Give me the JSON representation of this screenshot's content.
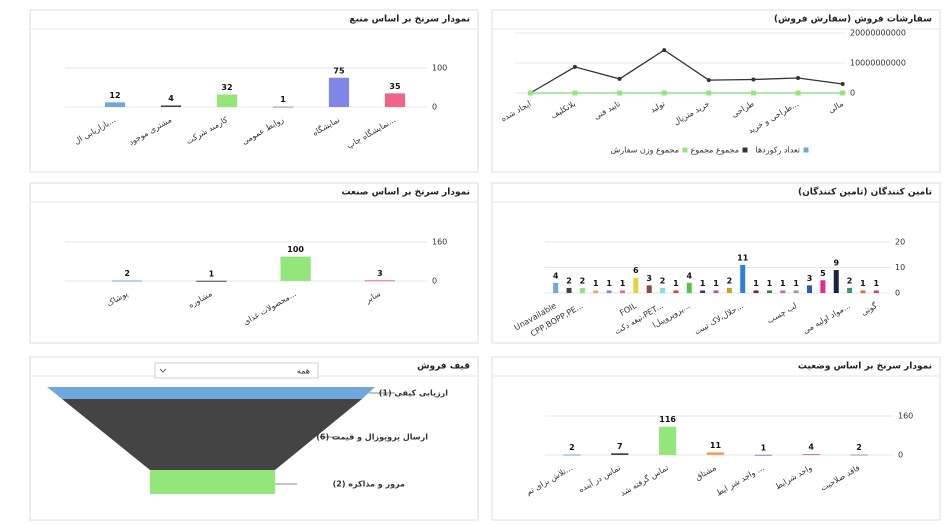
{
  "chart_data": [
    {
      "type": "bar",
      "title": "نمودار سرنخ بر اساس منبع",
      "categories": [
        "بازاریابی ال...",
        "مشتری موجود",
        "کارمند شرکت",
        "روابط عمومی",
        "نمایشگاه",
        "نمایشگاه چاپ..."
      ],
      "values": [
        12,
        4,
        32,
        1,
        75,
        35
      ],
      "colors": [
        "#6fa8dc",
        "#444444",
        "#93e67a",
        "#999999",
        "#7f86e8",
        "#f0648a"
      ],
      "ylim": [
        0,
        100
      ],
      "yticks": [
        0,
        100
      ],
      "grid": true
    },
    {
      "type": "line",
      "title": "سفارشات فروش (سفارش فروش)",
      "categories": [
        "ایجاد شده",
        "بلاتکلیف",
        "تایید فنی",
        "تولید",
        "خرید متریال",
        "طراحی",
        "طراحی و خرید...",
        "مالی"
      ],
      "series": [
        {
          "name": "تعداد رکوردها",
          "color": "#6fa8dc",
          "values": [
            0,
            0,
            0,
            0,
            0,
            0,
            0,
            0
          ]
        },
        {
          "name": "مجموع مجموع",
          "color": "#333333",
          "values": [
            0,
            8700000000,
            4700000000,
            14300000000,
            4300000000,
            4500000000,
            5000000000,
            3000000000
          ]
        },
        {
          "name": "مجموع وزن سفارش",
          "color": "#93e67a",
          "values": [
            0,
            0,
            0,
            0,
            0,
            0,
            0,
            0
          ]
        }
      ],
      "ylim": [
        0,
        20000000000
      ],
      "yticks": [
        0,
        10000000000,
        20000000000
      ],
      "grid": true,
      "legend": "bottom"
    },
    {
      "type": "bar",
      "title": "نمودار سرنخ بر اساس صنعت",
      "categories": [
        "پوشاک",
        "مشاوره",
        "محصولات غذای...",
        "سایر"
      ],
      "values": [
        2,
        1,
        100,
        3
      ],
      "colors": [
        "#6fa8dc",
        "#444444",
        "#93e67a",
        "#f0648a"
      ],
      "ylim": [
        0,
        160
      ],
      "yticks": [
        0,
        160
      ],
      "grid": true
    },
    {
      "type": "bar",
      "title": "تامین کنندگان (تامین کنندگان)",
      "categories": [
        "Unavailable",
        null,
        "CPP,BOPP,PE...",
        null,
        null,
        null,
        "FOIL",
        null,
        "تیغه دکت،PET...",
        null,
        "پروپروپیل‌ا...",
        null,
        null,
        null,
        "حلال،لاک تینت...",
        null,
        null,
        null,
        "لب چسب",
        null,
        null,
        null,
        "مواد اولیه می...",
        null,
        "گونی"
      ],
      "values": [
        4,
        2,
        2,
        1,
        1,
        1,
        6,
        3,
        2,
        1,
        4,
        1,
        1,
        2,
        11,
        1,
        1,
        1,
        1,
        3,
        5,
        9,
        2,
        1,
        1
      ],
      "colors": [
        "#6fa8dc",
        "#444444",
        "#93e67a",
        "#f4a35c",
        "#7f86e8",
        "#f0648a",
        "#e8d33f",
        "#8a4a4a",
        "#7fe0e0",
        "#e03c3c",
        "#5cbf4a",
        "#2e3a8c",
        "#b04fb0",
        "#c9a227",
        "#2f7fd8",
        "#7a1f3d",
        "#3c7a3c",
        "#d85c9c",
        "#999999",
        "#2b5aa8",
        "#e02c8c",
        "#1a2340",
        "#3c9a6a",
        "#e06a2c",
        "#d43c6a"
      ],
      "ylim": [
        0,
        20
      ],
      "yticks": [
        0,
        10,
        20
      ],
      "grid": true
    },
    {
      "type": "funnel",
      "title": "قیف فروش",
      "filter": "همه",
      "categories": [
        "ارزیابی کیفی",
        "ارسال پروپوزال و قیمت",
        "مرور و مذاکره"
      ],
      "values": [
        1,
        6,
        2
      ],
      "value_labels": [
        "ارزیابی کیفی (1)",
        "ارسال پروپوزال و قیمت (6)",
        "مرور و مذاکره (2)"
      ],
      "colors": [
        "#6fa8dc",
        "#444444",
        "#93e67a"
      ]
    },
    {
      "type": "bar",
      "title": "نمودار سرنخ بر اساس وضعیت",
      "categories": [
        "تلاش برای تم...",
        "تماس در آینده",
        "تماس گرفته شد",
        "مشتاق",
        "واجد شر ایط ...",
        "واجد شرایط",
        "فاقد صلاحیت"
      ],
      "values": [
        2,
        7,
        116,
        11,
        1,
        4,
        2
      ],
      "colors": [
        "#6fa8dc",
        "#444444",
        "#93e67a",
        "#f4a35c",
        "#7f86e8",
        "#f0648a",
        "#999999"
      ],
      "ylim": [
        0,
        160
      ],
      "yticks": [
        0,
        160
      ],
      "grid": true
    }
  ]
}
